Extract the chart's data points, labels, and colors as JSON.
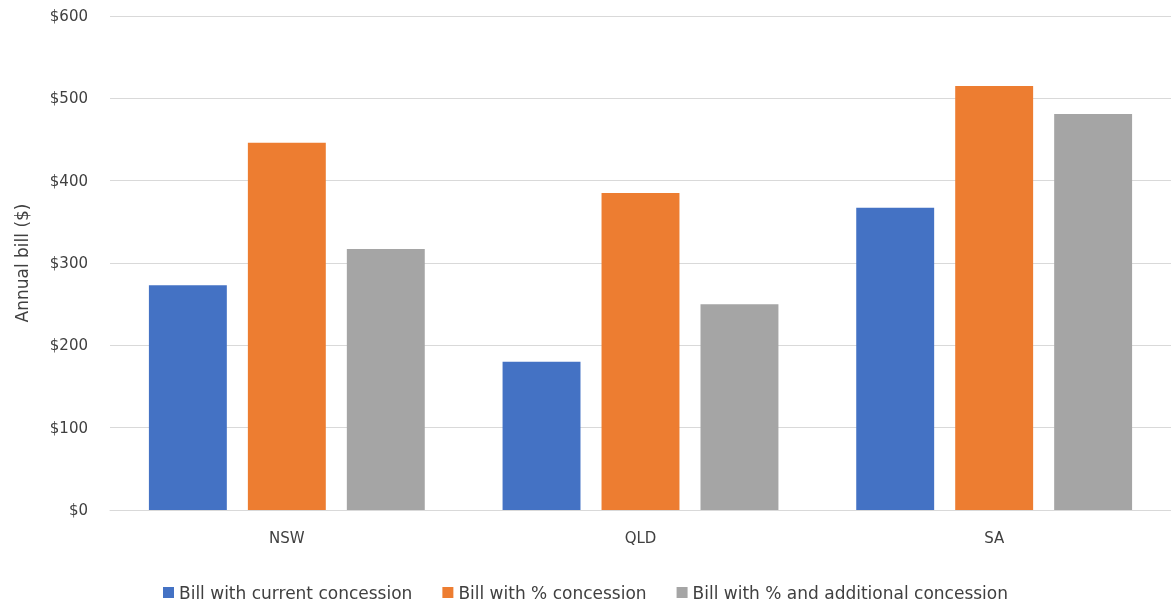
{
  "chart_data": {
    "type": "bar",
    "ylabel": "Annual bill ($)",
    "categories": [
      "NSW",
      "QLD",
      "SA"
    ],
    "series": [
      {
        "name": "Bill with current concession",
        "color": "#4472c4",
        "values": [
          273,
          180,
          367
        ]
      },
      {
        "name": "Bill with % concession",
        "color": "#ed7d31",
        "values": [
          446,
          385,
          515
        ]
      },
      {
        "name": "Bill with % and additional concession",
        "color": "#a5a5a5",
        "values": [
          317,
          250,
          481
        ]
      }
    ],
    "ylim": [
      0,
      600
    ],
    "yticks": [
      {
        "value": 0,
        "label": "$0"
      },
      {
        "value": 100,
        "label": "$100"
      },
      {
        "value": 200,
        "label": "$200"
      },
      {
        "value": 300,
        "label": "$300"
      },
      {
        "value": 400,
        "label": "$400"
      },
      {
        "value": 500,
        "label": "$500"
      },
      {
        "value": 600,
        "label": "$600"
      }
    ],
    "grid": "y",
    "legend": "bottom"
  }
}
